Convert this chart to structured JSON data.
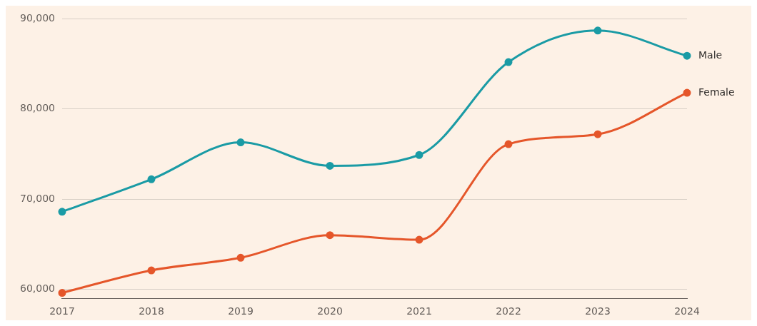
{
  "chart_data": {
    "type": "line",
    "categories": [
      "2017",
      "2018",
      "2019",
      "2020",
      "2021",
      "2022",
      "2023",
      "2024"
    ],
    "series": [
      {
        "name": "Male",
        "color": "#1a9ba5",
        "values": [
          68600,
          72200,
          76300,
          73700,
          74900,
          85200,
          88700,
          85900
        ]
      },
      {
        "name": "Female",
        "color": "#e5562a",
        "values": [
          59600,
          62100,
          63500,
          66000,
          65500,
          76100,
          77200,
          81800
        ]
      }
    ],
    "ylim": [
      59000,
      90000
    ],
    "yticks": [
      {
        "value": 60000,
        "label": "60,000"
      },
      {
        "value": 70000,
        "label": "70,000"
      },
      {
        "value": 80000,
        "label": "80,000"
      },
      {
        "value": 90000,
        "label": "90,000"
      }
    ],
    "grid": "y",
    "legend": false,
    "marker": "circle",
    "line_style": "solid"
  }
}
